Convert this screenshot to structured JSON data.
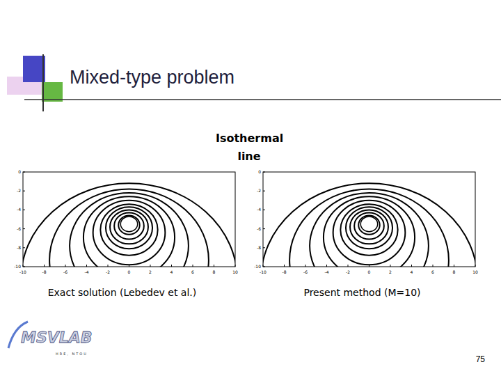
{
  "slide": {
    "title": "Mixed-type problem",
    "subtitle": "Isothermal line",
    "page_number": "75",
    "logo": "MSVLAB",
    "logo_subtitle": "HRE, NTOU"
  },
  "chart_data": [
    {
      "type": "contour",
      "title": "Exact solution (Lebedev et al.)",
      "xlim": [
        -10,
        10
      ],
      "ylim": [
        -10,
        0
      ],
      "xticks": [
        -10,
        -8,
        -6,
        -4,
        -2,
        0,
        2,
        4,
        6,
        8,
        10
      ],
      "yticks": [
        -10,
        -8,
        -6,
        -4,
        -2,
        0
      ],
      "hole": {
        "cx": 0,
        "cy": -5.5,
        "r": 0.8
      },
      "contours": [
        {
          "cx": 0,
          "cy": -5.6,
          "r": 1.0
        },
        {
          "cx": 0,
          "cy": -5.7,
          "r": 1.4
        },
        {
          "cx": 0,
          "cy": -5.8,
          "r": 1.8
        },
        {
          "cx": 0,
          "cy": -5.9,
          "r": 2.2
        },
        {
          "cx": 0,
          "cy": -6.1,
          "r": 2.7
        },
        {
          "cx": 0,
          "cy": -6.4,
          "r": 3.4
        },
        {
          "cx": 0,
          "cy": -6.9,
          "r": 4.3
        },
        {
          "cx": 0,
          "cy": -7.8,
          "r": 5.6
        },
        {
          "cx": 0,
          "cy": -9.3,
          "r": 7.5
        },
        {
          "cx": 0,
          "cy": -11.4,
          "r": 10.2
        }
      ]
    },
    {
      "type": "contour",
      "title": "Present method (M=10)",
      "xlim": [
        -10,
        10
      ],
      "ylim": [
        -10,
        0
      ],
      "xticks": [
        -10,
        -8,
        -6,
        -4,
        -2,
        0,
        2,
        4,
        6,
        8,
        10
      ],
      "yticks": [
        -10,
        -8,
        -6,
        -4,
        -2,
        0
      ],
      "hole": {
        "cx": 0,
        "cy": -5.5,
        "r": 0.8
      },
      "contours": [
        {
          "cx": 0,
          "cy": -5.6,
          "r": 1.0
        },
        {
          "cx": 0,
          "cy": -5.7,
          "r": 1.4
        },
        {
          "cx": 0,
          "cy": -5.8,
          "r": 1.8
        },
        {
          "cx": 0,
          "cy": -5.9,
          "r": 2.2
        },
        {
          "cx": 0,
          "cy": -6.1,
          "r": 2.7
        },
        {
          "cx": 0,
          "cy": -6.4,
          "r": 3.4
        },
        {
          "cx": 0,
          "cy": -6.9,
          "r": 4.3
        },
        {
          "cx": 0,
          "cy": -7.8,
          "r": 5.6
        },
        {
          "cx": 0,
          "cy": -9.3,
          "r": 7.5
        },
        {
          "cx": 0,
          "cy": -11.4,
          "r": 10.2
        }
      ]
    }
  ]
}
